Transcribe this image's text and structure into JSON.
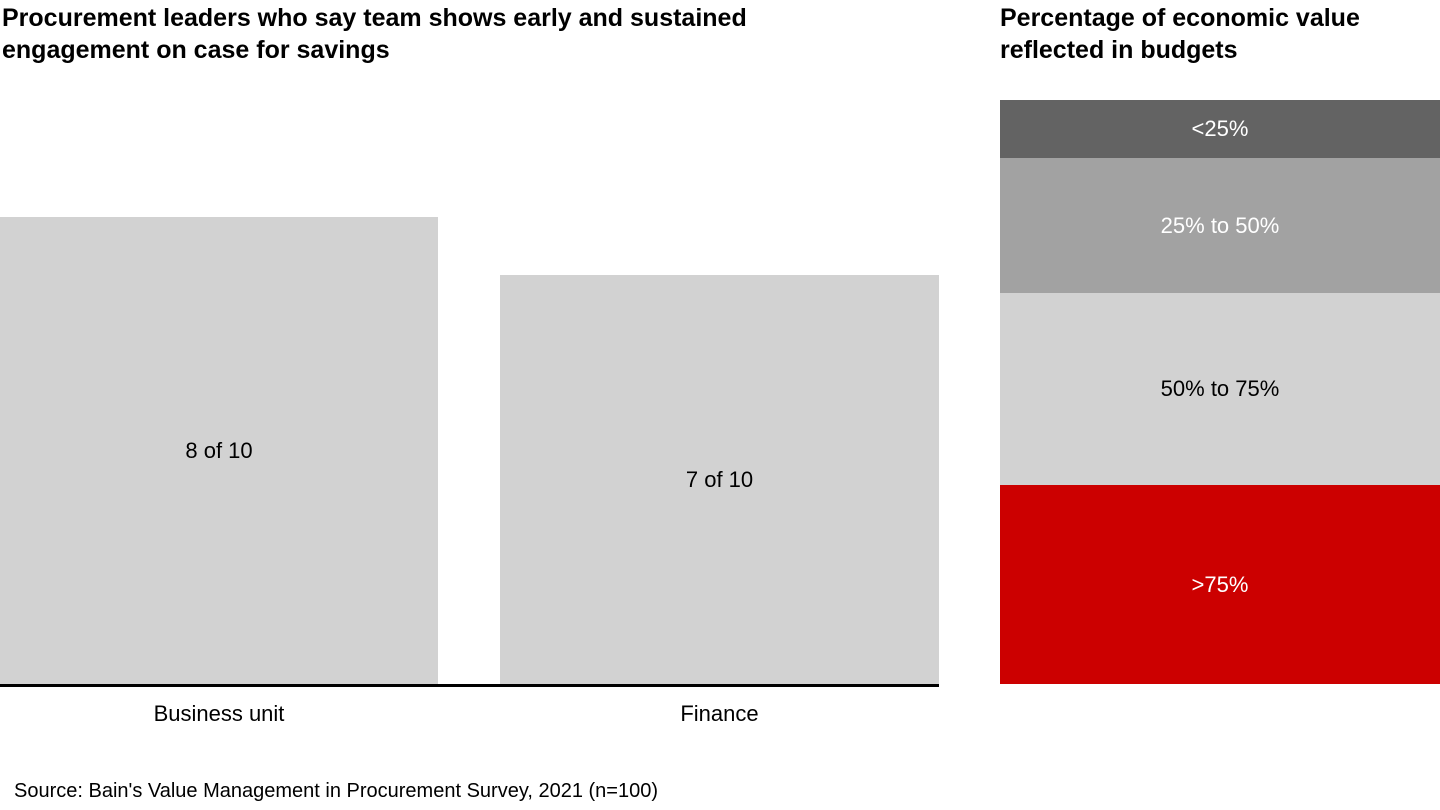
{
  "source": "Source: Bain's Value Management in Procurement Survey, 2021 (n=100)",
  "chart_data": [
    {
      "type": "bar",
      "title": "Procurement leaders who say team shows early and sustained engagement on case for savings",
      "categories": [
        "Business unit",
        "Finance"
      ],
      "values": [
        8,
        7
      ],
      "value_labels": [
        "8 of 10",
        "7 of 10"
      ],
      "ylim": [
        0,
        10
      ],
      "bar_color": "#d2d2d2",
      "axis_line_color": "#000000",
      "grid": false,
      "legend": "none"
    },
    {
      "type": "stacked-bar",
      "title": "Percentage of economic value reflected in budgets",
      "order": "top-to-bottom",
      "segments": [
        "<25%",
        "25% to 50%",
        "50% to 75%",
        ">75%"
      ],
      "values": [
        10,
        23,
        33,
        34
      ],
      "colors": [
        "#636363",
        "#a2a2a2",
        "#d2d2d2",
        "#cc0000"
      ],
      "label_colors": [
        "#ffffff",
        "#ffffff",
        "#000000",
        "#ffffff"
      ]
    }
  ]
}
